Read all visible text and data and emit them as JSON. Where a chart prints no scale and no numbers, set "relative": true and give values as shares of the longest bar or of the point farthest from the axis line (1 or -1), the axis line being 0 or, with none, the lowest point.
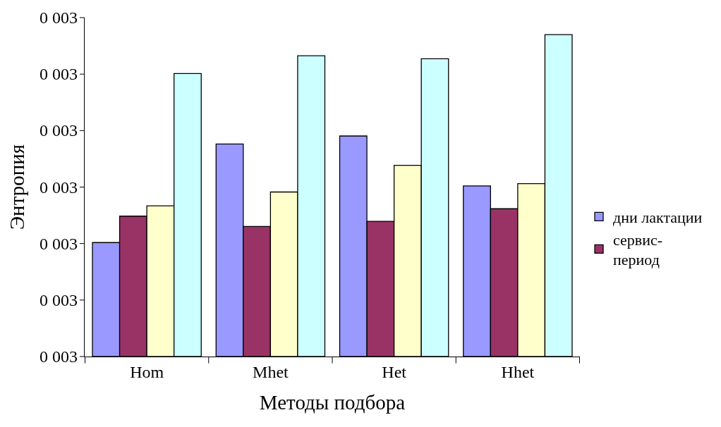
{
  "chart_data": {
    "type": "bar",
    "relative": true,
    "xlabel": "Методы подбора",
    "ylabel": "Энтропия",
    "categories": [
      "Hom",
      "Mhet",
      "Het",
      "Hhet"
    ],
    "series": [
      {
        "name": "дни лактации",
        "color": "#9999ff",
        "values": [
          0.354,
          0.66,
          0.685,
          0.53
        ]
      },
      {
        "name": "сервис-период",
        "color": "#993366",
        "values": [
          0.436,
          0.404,
          0.42,
          0.459
        ]
      },
      {
        "color": "#ffffcc",
        "values": [
          0.468,
          0.511,
          0.594,
          0.537
        ]
      },
      {
        "color": "#ccffff",
        "values": [
          0.879,
          0.934,
          0.925,
          1.0
        ]
      }
    ],
    "annotations": [
      "0 003",
      "0 003",
      "0 003",
      "0 003",
      "0 003",
      "0 003",
      "0 003"
    ],
    "legend": "right"
  }
}
